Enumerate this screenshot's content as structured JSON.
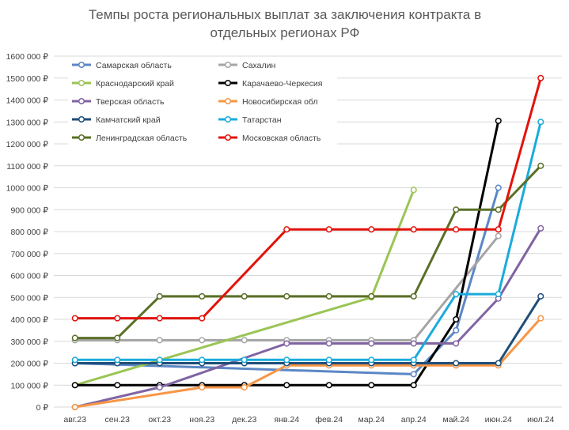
{
  "chart_data": {
    "type": "line",
    "title_lines": [
      "Темпы роста региональных выплат за заключения контракта в",
      "отдельных регионах РФ"
    ],
    "categories": [
      "авг.23",
      "сен.23",
      "окт.23",
      "ноя.23",
      "дек.23",
      "янв.24",
      "фев.24",
      "мар.24",
      "апр.24",
      "май.24",
      "июн.24",
      "июл.24"
    ],
    "ylim": [
      0,
      1600000
    ],
    "y_ticks": [
      "0 ₽",
      "100 000 ₽",
      "200 000 ₽",
      "300 000 ₽",
      "400 000 ₽",
      "500 000 ₽",
      "600 000 ₽",
      "700 000 ₽",
      "800 000 ₽",
      "900 000 ₽",
      "1000 000 ₽",
      "1100 000 ₽",
      "1200 000 ₽",
      "1300 000 ₽",
      "1400 000 ₽",
      "1500 000 ₽",
      "1600 000 ₽"
    ],
    "grid": true,
    "legend_position": "top-left (inside plot)",
    "series": [
      {
        "name": "Самарская область",
        "color": "#5b87c5",
        "points": [
          [
            0,
            200000
          ],
          [
            8,
            150000
          ],
          [
            9,
            350000
          ],
          [
            10,
            1000000
          ]
        ]
      },
      {
        "name": "Сахалин",
        "color": "#a5a5a5",
        "points": [
          [
            0,
            305000
          ],
          [
            1,
            305000
          ],
          [
            2,
            305000
          ],
          [
            3,
            305000
          ],
          [
            4,
            305000
          ],
          [
            5,
            305000
          ],
          [
            6,
            305000
          ],
          [
            7,
            305000
          ],
          [
            8,
            305000
          ],
          [
            10,
            780000
          ]
        ]
      },
      {
        "name": "Краснодарский край",
        "color": "#9ac555",
        "points": [
          [
            0,
            100000
          ],
          [
            7,
            500000
          ],
          [
            8,
            990000
          ]
        ]
      },
      {
        "name": "Карачаево-Черкесия",
        "color": "#000000",
        "points": [
          [
            0,
            100000
          ],
          [
            1,
            100000
          ],
          [
            2,
            100000
          ],
          [
            3,
            100000
          ],
          [
            4,
            100000
          ],
          [
            5,
            100000
          ],
          [
            6,
            100000
          ],
          [
            7,
            100000
          ],
          [
            8,
            100000
          ],
          [
            9,
            400000
          ],
          [
            10,
            1305000
          ]
        ]
      },
      {
        "name": "Тверская область",
        "color": "#8064a2",
        "points": [
          [
            0,
            0
          ],
          [
            2,
            90000
          ],
          [
            5,
            290000
          ],
          [
            6,
            290000
          ],
          [
            7,
            290000
          ],
          [
            8,
            290000
          ],
          [
            9,
            290000
          ],
          [
            10,
            495000
          ],
          [
            11,
            815000
          ]
        ]
      },
      {
        "name": "Новосибирская обл",
        "color": "#f79646",
        "points": [
          [
            0,
            0
          ],
          [
            3,
            90000
          ],
          [
            4,
            90000
          ],
          [
            5,
            190000
          ],
          [
            6,
            190000
          ],
          [
            7,
            190000
          ],
          [
            8,
            190000
          ],
          [
            9,
            190000
          ],
          [
            10,
            190000
          ],
          [
            11,
            405000
          ]
        ]
      },
      {
        "name": "Камчатский край",
        "color": "#1f4e79",
        "points": [
          [
            0,
            200000
          ],
          [
            1,
            200000
          ],
          [
            2,
            200000
          ],
          [
            3,
            200000
          ],
          [
            4,
            200000
          ],
          [
            5,
            200000
          ],
          [
            6,
            200000
          ],
          [
            7,
            200000
          ],
          [
            8,
            200000
          ],
          [
            9,
            200000
          ],
          [
            10,
            200000
          ],
          [
            11,
            505000
          ]
        ]
      },
      {
        "name": "Татарстан",
        "color": "#1aabdc",
        "points": [
          [
            0,
            215000
          ],
          [
            1,
            215000
          ],
          [
            2,
            215000
          ],
          [
            3,
            215000
          ],
          [
            4,
            215000
          ],
          [
            5,
            215000
          ],
          [
            6,
            215000
          ],
          [
            7,
            215000
          ],
          [
            8,
            215000
          ],
          [
            9,
            515000
          ],
          [
            10,
            515000
          ],
          [
            11,
            1300000
          ]
        ]
      },
      {
        "name": "Ленинградская область",
        "color": "#5a7026",
        "points": [
          [
            0,
            315000
          ],
          [
            1,
            315000
          ],
          [
            2,
            505000
          ],
          [
            3,
            505000
          ],
          [
            4,
            505000
          ],
          [
            5,
            505000
          ],
          [
            6,
            505000
          ],
          [
            7,
            505000
          ],
          [
            8,
            505000
          ],
          [
            9,
            900000
          ],
          [
            10,
            900000
          ],
          [
            11,
            1100000
          ]
        ]
      },
      {
        "name": "Московская область",
        "color": "#e3120b",
        "points": [
          [
            0,
            405000
          ],
          [
            1,
            405000
          ],
          [
            2,
            405000
          ],
          [
            3,
            405000
          ],
          [
            5,
            810000
          ],
          [
            6,
            810000
          ],
          [
            7,
            810000
          ],
          [
            8,
            810000
          ],
          [
            9,
            810000
          ],
          [
            10,
            810000
          ],
          [
            11,
            1500000
          ]
        ]
      }
    ]
  }
}
